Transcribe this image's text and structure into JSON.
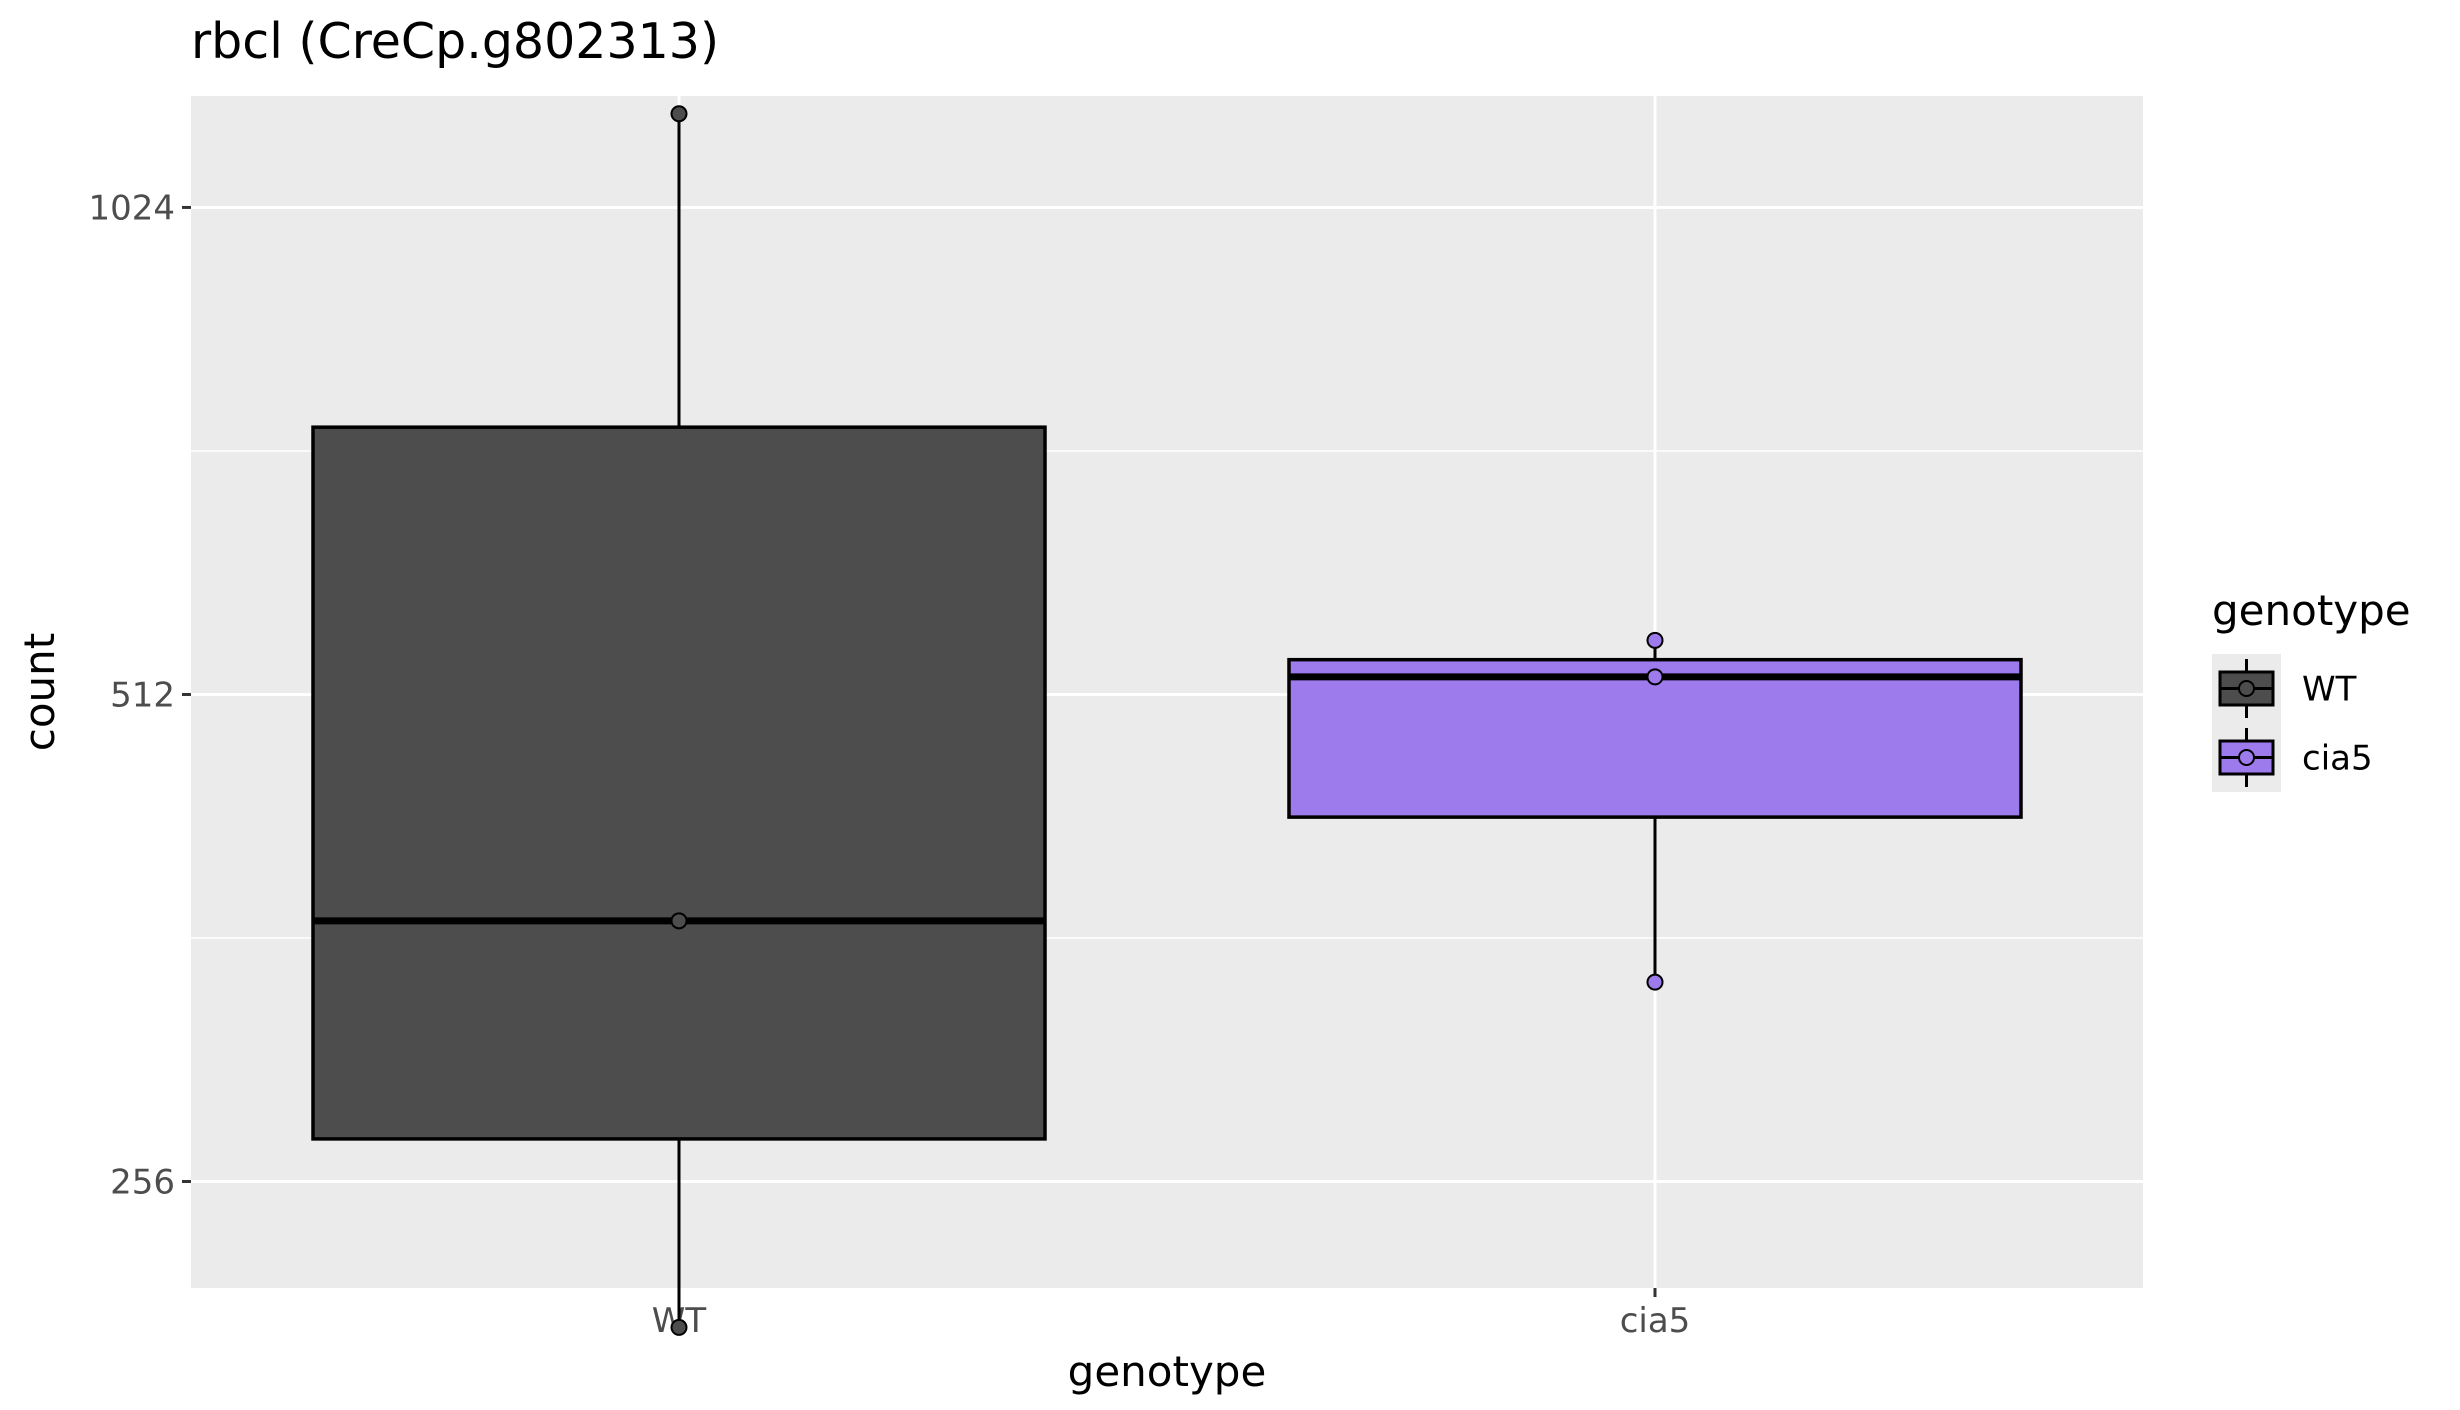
{
  "chart_data": {
    "type": "box",
    "title": "rbcl (CreCp.g802313)",
    "xlabel": "genotype",
    "ylabel": "count",
    "y_scale": "log2",
    "ylim": [
      220,
      1200
    ],
    "y_ticks": [
      256,
      512,
      1024
    ],
    "y_tick_labels": [
      "256",
      "512",
      "1024"
    ],
    "categories": [
      "WT",
      "cia5"
    ],
    "boxes": [
      {
        "category": "WT",
        "fill": "#4d4d4d",
        "min": 208,
        "q1": 272,
        "median": 371,
        "q3": 749,
        "max": 1170,
        "points": [
          1170,
          371,
          208
        ]
      },
      {
        "category": "cia5",
        "fill": "#9e7bed",
        "min": 340,
        "q1": 430,
        "median": 525,
        "q3": 538,
        "max": 553,
        "points": [
          553,
          525,
          340
        ]
      }
    ],
    "legend": {
      "title": "genotype",
      "position": "right",
      "entries": [
        {
          "label": "WT",
          "fill": "#4d4d4d"
        },
        {
          "label": "cia5",
          "fill": "#9e7bed"
        }
      ]
    },
    "grid": true,
    "panel_background": "#ebebeb",
    "grid_color": "#ffffff"
  }
}
